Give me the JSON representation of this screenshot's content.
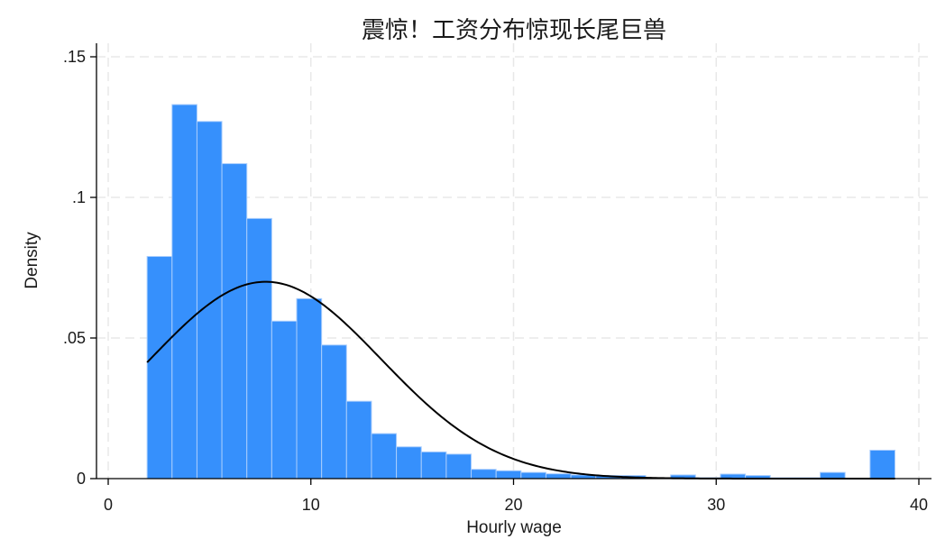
{
  "chart_data": {
    "type": "bar",
    "title": "震惊！工资分布惊现长尾巨兽",
    "xlabel": "Hourly wage",
    "ylabel": "Density",
    "xlim": [
      0,
      40
    ],
    "ylim": [
      0,
      0.15
    ],
    "x_ticks": [
      {
        "value": 0,
        "label": "0"
      },
      {
        "value": 10,
        "label": "10"
      },
      {
        "value": 20,
        "label": "20"
      },
      {
        "value": 30,
        "label": "30"
      },
      {
        "value": 40,
        "label": "40"
      }
    ],
    "y_ticks": [
      {
        "value": 0,
        "label": "0"
      },
      {
        "value": 0.05,
        "label": ".05"
      },
      {
        "value": 0.1,
        "label": ".1"
      },
      {
        "value": 0.15,
        "label": ".15"
      }
    ],
    "grid": true,
    "bar_color": "#3690fc",
    "bar_edge_color": "#a9cdfd",
    "curve_color": "#000000",
    "bins": [
      {
        "x0": 1.92,
        "x1": 3.15,
        "density": 0.079
      },
      {
        "x0": 3.15,
        "x1": 4.38,
        "density": 0.133
      },
      {
        "x0": 4.38,
        "x1": 5.61,
        "density": 0.127
      },
      {
        "x0": 5.61,
        "x1": 6.84,
        "density": 0.112
      },
      {
        "x0": 6.84,
        "x1": 8.07,
        "density": 0.0925
      },
      {
        "x0": 8.07,
        "x1": 9.3,
        "density": 0.056
      },
      {
        "x0": 9.3,
        "x1": 10.53,
        "density": 0.064
      },
      {
        "x0": 10.53,
        "x1": 11.76,
        "density": 0.0475
      },
      {
        "x0": 11.76,
        "x1": 12.99,
        "density": 0.0275
      },
      {
        "x0": 12.99,
        "x1": 14.22,
        "density": 0.016
      },
      {
        "x0": 14.22,
        "x1": 15.45,
        "density": 0.0113
      },
      {
        "x0": 15.45,
        "x1": 16.68,
        "density": 0.0095
      },
      {
        "x0": 16.68,
        "x1": 17.91,
        "density": 0.0087
      },
      {
        "x0": 17.91,
        "x1": 19.14,
        "density": 0.0033
      },
      {
        "x0": 19.14,
        "x1": 20.37,
        "density": 0.0028
      },
      {
        "x0": 20.37,
        "x1": 21.6,
        "density": 0.0022
      },
      {
        "x0": 21.6,
        "x1": 22.83,
        "density": 0.0017
      },
      {
        "x0": 22.83,
        "x1": 24.06,
        "density": 0.0013
      },
      {
        "x0": 24.06,
        "x1": 25.29,
        "density": 0.0011
      },
      {
        "x0": 25.29,
        "x1": 26.52,
        "density": 0.0011
      },
      {
        "x0": 26.52,
        "x1": 27.75,
        "density": 0.0003
      },
      {
        "x0": 27.75,
        "x1": 28.98,
        "density": 0.0013
      },
      {
        "x0": 28.98,
        "x1": 30.21,
        "density": 0.0003
      },
      {
        "x0": 30.21,
        "x1": 31.44,
        "density": 0.0016
      },
      {
        "x0": 31.44,
        "x1": 32.67,
        "density": 0.0011
      },
      {
        "x0": 32.67,
        "x1": 33.9,
        "density": 0.0003
      },
      {
        "x0": 33.9,
        "x1": 35.13,
        "density": 0.0003
      },
      {
        "x0": 35.13,
        "x1": 36.36,
        "density": 0.0022
      },
      {
        "x0": 36.36,
        "x1": 37.59,
        "density": 0.0
      },
      {
        "x0": 37.59,
        "x1": 38.82,
        "density": 0.0101
      }
    ],
    "normal_curve": {
      "mean": 7.77,
      "sd": 5.7,
      "x_range": [
        1.92,
        38.82
      ]
    }
  }
}
